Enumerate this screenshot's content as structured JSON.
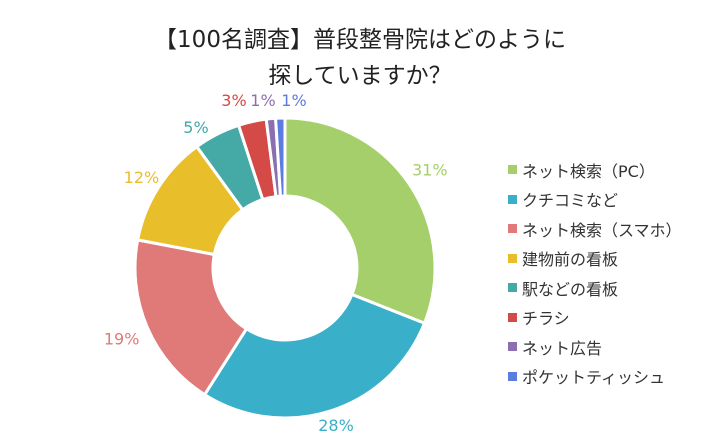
{
  "chart_data": {
    "type": "pie",
    "donut": true,
    "title_lines": [
      "【100名調査】普段整骨院はどのように",
      "探していますか？"
    ],
    "legend_position": "right",
    "series": [
      {
        "name": "ネット検索（PC）",
        "value": 31,
        "label": "31%",
        "color": "#a5cf6a"
      },
      {
        "name": "クチコミなど",
        "value": 28,
        "label": "28%",
        "color": "#3aafc9"
      },
      {
        "name": "ネット検索（スマホ）",
        "value": 19,
        "label": "19%",
        "color": "#e07a78"
      },
      {
        "name": "建物前の看板",
        "value": 12,
        "label": "12%",
        "color": "#e8be2a"
      },
      {
        "name": "駅などの看板",
        "value": 5,
        "label": "5%",
        "color": "#45a9a6"
      },
      {
        "name": "チラシ",
        "value": 3,
        "label": "3%",
        "color": "#d44a46"
      },
      {
        "name": "ネット広告",
        "value": 1,
        "label": "1%",
        "color": "#8c6fb0"
      },
      {
        "name": "ポケットティッシュ",
        "value": 1,
        "label": "1%",
        "color": "#5b7de0"
      }
    ]
  }
}
